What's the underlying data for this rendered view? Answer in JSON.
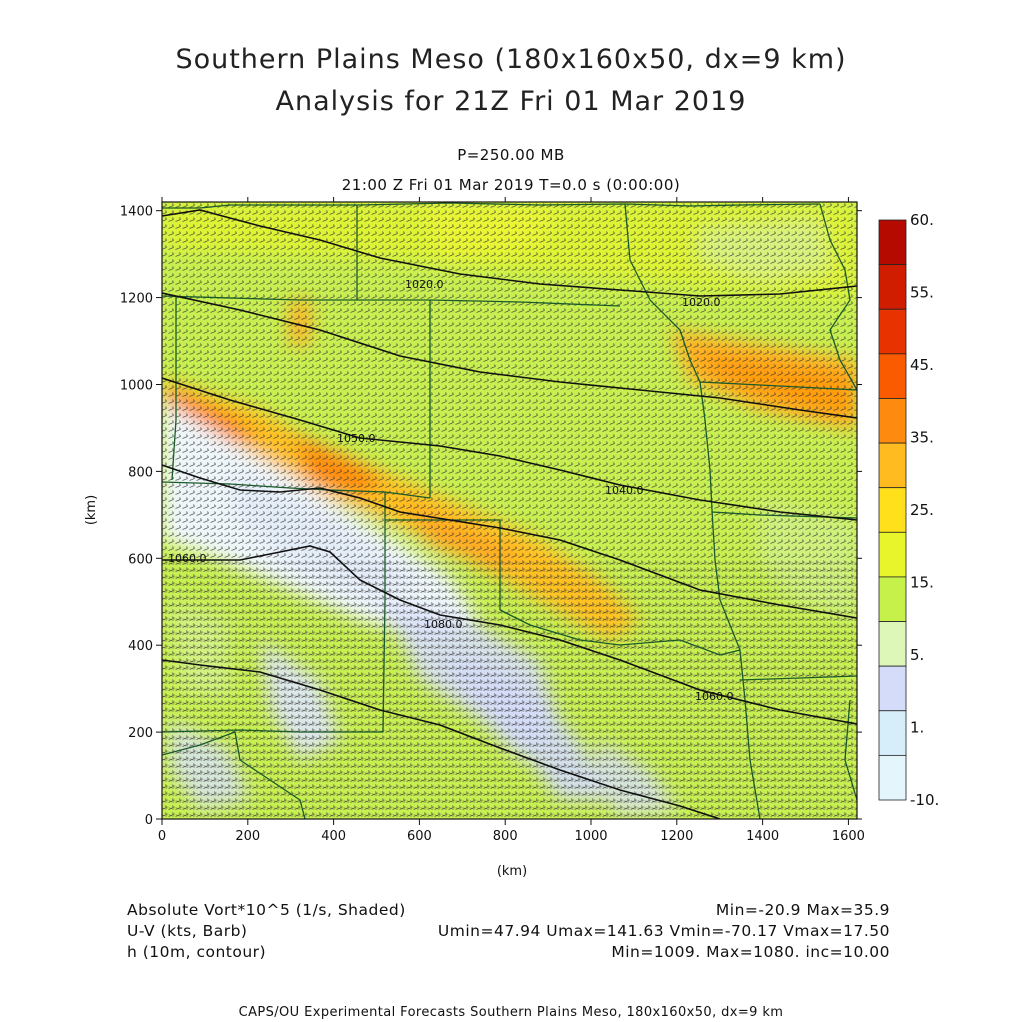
{
  "titles": {
    "line1": "Southern Plains Meso (180x160x50, dx=9 km)",
    "line2": "Analysis for 21Z Fri 01 Mar 2019",
    "level": "P=250.00 MB",
    "time": "21:00 Z Fri 01 Mar 2019    T=0.0 s (0:00:00)"
  },
  "axes": {
    "x_label": "(km)",
    "y_label": "(km)",
    "x_ticks": [
      "0",
      "200",
      "400",
      "600",
      "800",
      "1000",
      "1200",
      "1400",
      "1600"
    ],
    "y_ticks": [
      "0",
      "200",
      "400",
      "600",
      "800",
      "1000",
      "1200",
      "1400"
    ],
    "x_range": [
      0,
      1620
    ],
    "y_range": [
      0,
      1420
    ]
  },
  "colorbar": {
    "labels": [
      "60.",
      "55.",
      "45.",
      "35.",
      "25.",
      "15.",
      "5.",
      "1.",
      "-10."
    ],
    "colors": [
      "#b50a00",
      "#d01d00",
      "#e83200",
      "#fa5a00",
      "#ff8a10",
      "#ffbb20",
      "#ffe01a",
      "#e8f52a",
      "#c6f04a",
      "#ddf7b8",
      "#d4dcfa",
      "#d6eefa",
      "#e4f6fc"
    ]
  },
  "contour_labels": [
    "1020.0",
    "1020.0",
    "1050.0",
    "1040.0",
    "1060.0",
    "1080.0",
    "1060.0"
  ],
  "legend": {
    "field1": "Absolute Vort*10^5 (1/s, Shaded)",
    "field1_stats": "Min=-20.9 Max=35.9",
    "field2": "U-V (kts, Barb)",
    "field2_stats": "Umin=47.94 Umax=141.63 Vmin=-70.17 Vmax=17.50",
    "field3": "h (10m, contour)",
    "field3_stats": "Min=1009. Max=1080. inc=10.00"
  },
  "footer": "CAPS/OU Experimental Forecasts  Southern Plains Meso, 180x160x50, dx=9 km"
}
